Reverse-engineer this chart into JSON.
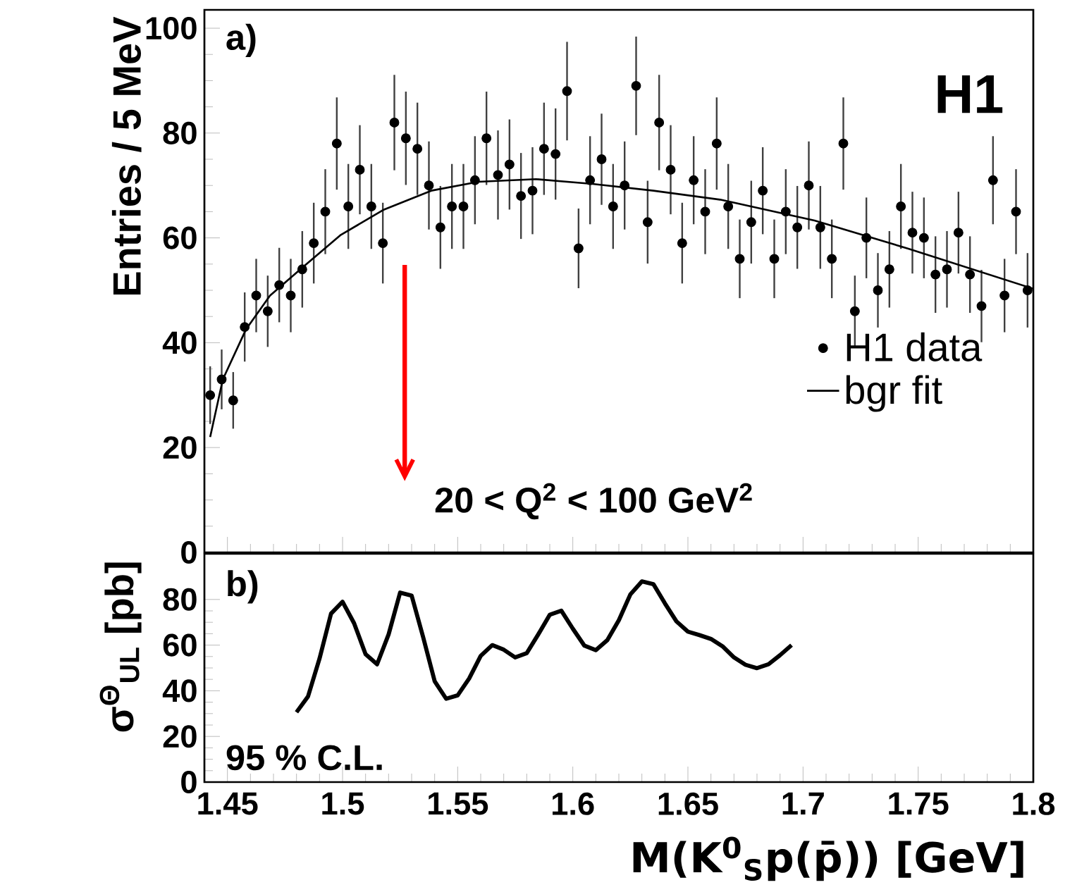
{
  "chart_data": [
    {
      "type": "scatter",
      "ylabel": "Entries / 5 MeV",
      "xlim": [
        1.44,
        1.8
      ],
      "ylim": [
        0,
        103.5
      ],
      "xticks": [
        1.45,
        1.5,
        1.55,
        1.6,
        1.65,
        1.7,
        1.75,
        1.8
      ],
      "yticks": [
        0,
        20,
        40,
        60,
        80,
        100
      ],
      "tick_labels": "y",
      "legend": "right",
      "annotations": [
        "a)",
        "H1",
        "20 < Q$^{2}$ < 100 GeV$^{2}$"
      ],
      "ref_lines": [
        {
          "axis": "x",
          "value": 1.527,
          "color": "#ff0000"
        }
      ],
      "series": [
        {
          "name": "H1 data",
          "type": "scatter",
          "marker": "circle",
          "color": "#000000",
          "x": [
            1.4425,
            1.4475,
            1.4525,
            1.4575,
            1.4625,
            1.4675,
            1.4725,
            1.4775,
            1.4825,
            1.4875,
            1.4925,
            1.4975,
            1.5025,
            1.5075,
            1.5125,
            1.5175,
            1.5225,
            1.5275,
            1.5325,
            1.5375,
            1.5425,
            1.5475,
            1.5525,
            1.5575,
            1.5625,
            1.5675,
            1.5725,
            1.5775,
            1.5825,
            1.5875,
            1.5925,
            1.5975,
            1.6025,
            1.6075,
            1.6125,
            1.6175,
            1.6225,
            1.6275,
            1.6325,
            1.6375,
            1.6425,
            1.6475,
            1.6525,
            1.6575,
            1.6625,
            1.6675,
            1.6725,
            1.6775,
            1.6825,
            1.6875,
            1.6925,
            1.6975,
            1.7025,
            1.7075,
            1.7125,
            1.7175,
            1.7225,
            1.7275,
            1.7325,
            1.7375,
            1.7425,
            1.7475,
            1.7525,
            1.7575,
            1.7625,
            1.7675,
            1.7725,
            1.7775,
            1.7825,
            1.7875,
            1.7925,
            1.7975
          ],
          "values": [
            30,
            33,
            29,
            43,
            49,
            46,
            51,
            49,
            54,
            59,
            65,
            78,
            66,
            73,
            66,
            59,
            82,
            79,
            77,
            70,
            62,
            66,
            66,
            71,
            79,
            72,
            74,
            68,
            69,
            77,
            76,
            88,
            58,
            71,
            75,
            66,
            70,
            89,
            63,
            82,
            73,
            59,
            71,
            65,
            78,
            66,
            56,
            63,
            69,
            56,
            65,
            62,
            70,
            62,
            56,
            78,
            46,
            60,
            50,
            54,
            66,
            61,
            60,
            53,
            54,
            61,
            53,
            47,
            71,
            49,
            65,
            50
          ],
          "errors": [
            5.5,
            5.7,
            5.4,
            6.6,
            7,
            6.8,
            7.1,
            7,
            7.3,
            7.7,
            8.1,
            8.8,
            8.1,
            8.5,
            8.1,
            7.7,
            9.1,
            8.9,
            8.8,
            8.4,
            7.9,
            8.1,
            8.1,
            8.4,
            8.9,
            8.5,
            8.6,
            8.2,
            8.3,
            8.8,
            8.7,
            9.4,
            7.6,
            8.4,
            8.7,
            8.1,
            8.4,
            9.4,
            7.9,
            9.1,
            8.5,
            7.7,
            8.4,
            8.1,
            8.8,
            8.1,
            7.5,
            7.9,
            8.3,
            7.5,
            8.1,
            7.9,
            8.4,
            7.9,
            7.5,
            8.8,
            6.8,
            7.7,
            7.1,
            7.3,
            8.1,
            7.8,
            7.7,
            7.3,
            7.3,
            7.8,
            7.3,
            6.9,
            8.4,
            7,
            8.1,
            7.1
          ]
        },
        {
          "name": "bgr fit",
          "type": "line",
          "color": "#000000",
          "x": [
            1.4425,
            1.448,
            1.458,
            1.4685,
            1.483,
            1.499,
            1.518,
            1.5385,
            1.559,
            1.584,
            1.6085,
            1.635,
            1.664,
            1.705,
            1.746,
            1.8
          ],
          "values": [
            22,
            33,
            42.5,
            49,
            54.5,
            60.5,
            65.4,
            69,
            70.7,
            71.2,
            70.3,
            69,
            67.3,
            63.3,
            57.9,
            50.3
          ]
        }
      ]
    },
    {
      "type": "line",
      "xlabel": "M(K$^{0}$$_{S}$p(p̄)) [GeV]",
      "ylabel": "σ$^{Θ}$$_{UL}$ [pb]",
      "xlim": [
        1.44,
        1.8
      ],
      "ylim": [
        0,
        100
      ],
      "xticks": [
        1.45,
        1.5,
        1.55,
        1.6,
        1.65,
        1.7,
        1.75,
        1.8
      ],
      "yticks": [
        0,
        20,
        40,
        60,
        80
      ],
      "annotations": [
        "b)",
        "95 % C.L."
      ],
      "series": [
        {
          "color": "#000000",
          "x": [
            1.48,
            1.485,
            1.49,
            1.495,
            1.5,
            1.505,
            1.51,
            1.515,
            1.52,
            1.525,
            1.53,
            1.535,
            1.54,
            1.545,
            1.55,
            1.555,
            1.56,
            1.565,
            1.57,
            1.575,
            1.58,
            1.585,
            1.59,
            1.595,
            1.6,
            1.605,
            1.61,
            1.615,
            1.62,
            1.625,
            1.63,
            1.635,
            1.64,
            1.645,
            1.65,
            1.655,
            1.66,
            1.665,
            1.67,
            1.675,
            1.68,
            1.685,
            1.69,
            1.695
          ],
          "values": [
            30.6,
            37.5,
            54.1,
            73.8,
            79.0,
            69.6,
            56.0,
            51.6,
            64.7,
            83.0,
            81.7,
            63.5,
            44.2,
            36.5,
            38.0,
            45.4,
            55.3,
            60.0,
            58.0,
            54.6,
            56.5,
            64.7,
            73.3,
            75.1,
            67.2,
            59.8,
            57.8,
            62.2,
            70.9,
            82.2,
            87.9,
            86.7,
            78.3,
            70.4,
            65.9,
            64.4,
            62.7,
            59.5,
            54.6,
            51.4,
            49.9,
            51.6,
            55.6,
            60.0
          ]
        }
      ]
    }
  ]
}
